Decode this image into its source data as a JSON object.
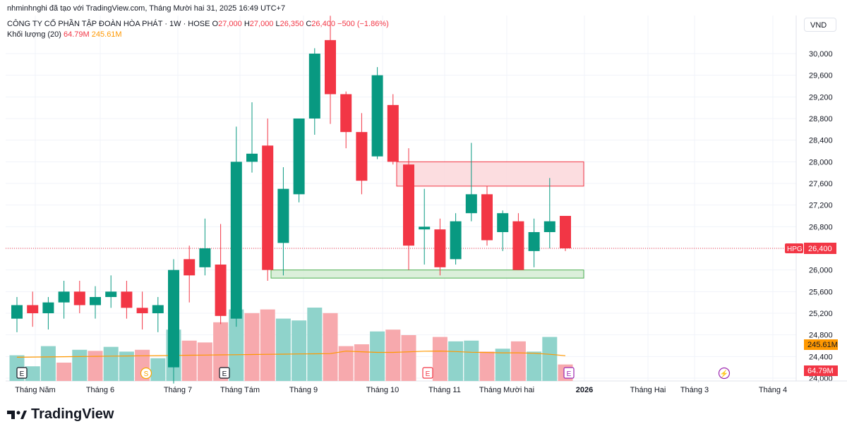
{
  "header": {
    "meta": "nhminhnghi đã tạo với TradingView.com, Tháng Mười hai 31, 2025 16:49 UTC+7",
    "symbol_title": "CÔNG TY CỔ PHẦN TẬP ĐOÀN HÒA PHÁT · 1W · HOSE",
    "o_label": "O",
    "o_value": "27,000",
    "h_label": "H",
    "h_value": "27,000",
    "l_label": "L",
    "l_value": "26,350",
    "c_label": "C",
    "c_value": "26,400",
    "change": "−500 (−1.86%)",
    "volume_label": "Khối lượng (20)",
    "volume_value": "64.79M",
    "volume_ma_value": "245.61M"
  },
  "currency": "VND",
  "footer_brand": "TradingView",
  "colors": {
    "up": "#089981",
    "down": "#f23645",
    "up_vol": "#8fd3cb",
    "down_vol": "#f7a9ad",
    "ma": "#ff9800",
    "resistance_fill": "#fbd7da",
    "resistance_stroke": "#f23645",
    "support_fill": "#d5ecd4",
    "support_stroke": "#4caf50"
  },
  "chart_data": {
    "type": "candlestick",
    "symbol": "HPG",
    "last_price": "26,400",
    "y_ticks": [
      "30,000",
      "29,600",
      "29,200",
      "28,800",
      "28,400",
      "28,000",
      "27,600",
      "27,200",
      "26,800",
      "26,400",
      "26,000",
      "25,600",
      "25,200",
      "24,800",
      "24,400",
      "24,000"
    ],
    "volume_badge": "245.61M",
    "volume_last_badge": "64.79M",
    "x_labels": [
      "Tháng Năm",
      "Tháng 6",
      "Tháng 7",
      "Tháng Tám",
      "Tháng 9",
      "Tháng 10",
      "Tháng 11",
      "Tháng Mười hai",
      "2026",
      "Tháng Hai",
      "Tháng 3",
      "Tháng 4"
    ],
    "candles": [
      {
        "o": 25100,
        "h": 25500,
        "l": 24850,
        "c": 25350
      },
      {
        "o": 25350,
        "h": 25600,
        "l": 24950,
        "c": 25200
      },
      {
        "o": 25200,
        "h": 25500,
        "l": 24900,
        "c": 25400
      },
      {
        "o": 25400,
        "h": 25800,
        "l": 25100,
        "c": 25600
      },
      {
        "o": 25600,
        "h": 25800,
        "l": 25200,
        "c": 25350
      },
      {
        "o": 25350,
        "h": 25700,
        "l": 25100,
        "c": 25500
      },
      {
        "o": 25500,
        "h": 25900,
        "l": 25300,
        "c": 25600
      },
      {
        "o": 25600,
        "h": 25800,
        "l": 25100,
        "c": 25300
      },
      {
        "o": 25300,
        "h": 25600,
        "l": 24900,
        "c": 25200
      },
      {
        "o": 25200,
        "h": 25500,
        "l": 24850,
        "c": 25350
      },
      {
        "o": 24200,
        "h": 26200,
        "l": 23900,
        "c": 26000
      },
      {
        "o": 26200,
        "h": 26450,
        "l": 25400,
        "c": 25900
      },
      {
        "o": 26050,
        "h": 26950,
        "l": 25900,
        "c": 26400
      },
      {
        "o": 26100,
        "h": 26850,
        "l": 25000,
        "c": 25150
      },
      {
        "o": 25100,
        "h": 28650,
        "l": 24950,
        "c": 28000
      },
      {
        "o": 28000,
        "h": 29100,
        "l": 27800,
        "c": 28150
      },
      {
        "o": 28300,
        "h": 28800,
        "l": 25800,
        "c": 26000
      },
      {
        "o": 26500,
        "h": 27900,
        "l": 25900,
        "c": 27500
      },
      {
        "o": 27400,
        "h": 28800,
        "l": 27250,
        "c": 28800
      },
      {
        "o": 28800,
        "h": 30100,
        "l": 28500,
        "c": 30000
      },
      {
        "o": 30250,
        "h": 30700,
        "l": 28700,
        "c": 29250
      },
      {
        "o": 29250,
        "h": 29300,
        "l": 28250,
        "c": 28550
      },
      {
        "o": 28550,
        "h": 28900,
        "l": 27400,
        "c": 27650
      },
      {
        "o": 28100,
        "h": 29750,
        "l": 28050,
        "c": 29600
      },
      {
        "o": 29050,
        "h": 29250,
        "l": 27950,
        "c": 28000
      },
      {
        "o": 27950,
        "h": 28250,
        "l": 26000,
        "c": 26450
      },
      {
        "o": 26750,
        "h": 27500,
        "l": 26100,
        "c": 26800
      },
      {
        "o": 26750,
        "h": 26950,
        "l": 25900,
        "c": 26050
      },
      {
        "o": 26200,
        "h": 27050,
        "l": 26100,
        "c": 26900
      },
      {
        "o": 27050,
        "h": 28350,
        "l": 26900,
        "c": 27400
      },
      {
        "o": 27400,
        "h": 27550,
        "l": 26450,
        "c": 26550
      },
      {
        "o": 26700,
        "h": 27100,
        "l": 26350,
        "c": 27050
      },
      {
        "o": 26900,
        "h": 27050,
        "l": 26000,
        "c": 26000
      },
      {
        "o": 26350,
        "h": 26950,
        "l": 26050,
        "c": 26700
      },
      {
        "o": 26700,
        "h": 27700,
        "l": 26400,
        "c": 26900
      },
      {
        "o": 27000,
        "h": 27000,
        "l": 26350,
        "c": 26400
      }
    ],
    "volume_up_down": [
      "u",
      "u",
      "u",
      "d",
      "u",
      "d",
      "u",
      "u",
      "d",
      "u",
      "u",
      "d",
      "d",
      "d",
      "u",
      "d",
      "d",
      "u",
      "u",
      "u",
      "d",
      "d",
      "d",
      "u",
      "d",
      "d",
      "u",
      "d",
      "u",
      "u",
      "d",
      "u",
      "d",
      "u",
      "u",
      "d"
    ],
    "volumes": [
      70,
      40,
      95,
      50,
      85,
      82,
      93,
      80,
      85,
      62,
      140,
      110,
      105,
      160,
      195,
      185,
      195,
      170,
      165,
      200,
      185,
      95,
      100,
      135,
      140,
      125,
      0,
      120,
      108,
      110,
      80,
      88,
      108,
      80,
      120,
      45
    ],
    "zones": [
      {
        "name": "resistance",
        "top": 28000,
        "bottom": 27550
      },
      {
        "name": "support",
        "top": 26000,
        "bottom": 25850
      }
    ],
    "event_markers": [
      "E",
      "S",
      "E",
      "E",
      "E",
      "⚡"
    ]
  }
}
